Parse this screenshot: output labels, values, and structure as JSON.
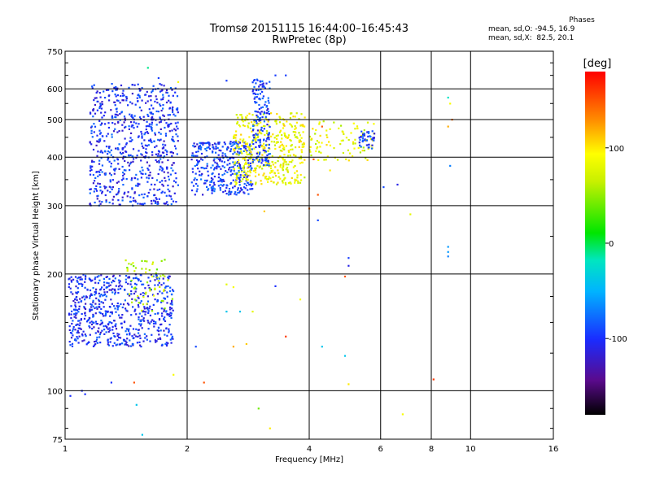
{
  "chart_data": {
    "type": "scatter",
    "title": "Tromsø 20151115 16:44:00–16:45:43",
    "subtitle": "RwPretec (8p)",
    "xlabel": "Frequency [MHz]",
    "ylabel": "Stationary phase Virtual Height [km]",
    "x_scale": "log",
    "y_scale": "log",
    "xlim": [
      1,
      16
    ],
    "ylim": [
      75,
      750
    ],
    "x_ticks": [
      1,
      2,
      4,
      6,
      8,
      10,
      16
    ],
    "x_tick_labels": [
      "1",
      "2",
      "4",
      "6",
      "8",
      "10",
      "16"
    ],
    "y_ticks": [
      75,
      100,
      200,
      300,
      400,
      500,
      600,
      750
    ],
    "y_tick_labels": [
      "75",
      "100",
      "200",
      "300",
      "400",
      "500",
      "600",
      "750"
    ],
    "grid": true,
    "colorbar": {
      "label": "[deg]",
      "range": [
        -180,
        180
      ],
      "ticks": [
        100,
        0,
        -100
      ],
      "tick_labels": [
        "100",
        "0",
        "-100"
      ]
    },
    "phase_stats": {
      "title": "Phases",
      "line_o": "mean, sd,O: -94.5, 16.9",
      "line_x": "mean, sd,X:  82.5, 20.1"
    },
    "clusters": [
      {
        "fmin": 1.15,
        "fmax": 1.9,
        "hmin": 300,
        "hmax": 620,
        "phase": -100,
        "count": 700
      },
      {
        "fmin": 2.05,
        "fmax": 2.9,
        "hmin": 320,
        "hmax": 440,
        "phase": -95,
        "count": 350
      },
      {
        "fmin": 2.6,
        "fmax": 3.9,
        "hmin": 340,
        "hmax": 520,
        "phase": 85,
        "count": 420
      },
      {
        "fmin": 2.9,
        "fmax": 3.2,
        "hmin": 380,
        "hmax": 640,
        "phase": -95,
        "count": 160
      },
      {
        "fmin": 4.0,
        "fmax": 5.8,
        "hmin": 390,
        "hmax": 500,
        "phase": 80,
        "count": 90
      },
      {
        "fmin": 5.3,
        "fmax": 5.8,
        "hmin": 420,
        "hmax": 470,
        "phase": -95,
        "count": 40
      },
      {
        "fmin": 1.02,
        "fmax": 1.85,
        "hmin": 130,
        "hmax": 200,
        "phase": -100,
        "count": 650
      },
      {
        "fmin": 1.4,
        "fmax": 1.85,
        "hmin": 160,
        "hmax": 220,
        "phase": 60,
        "count": 60
      }
    ],
    "points": [
      {
        "x": 1.6,
        "y": 680,
        "phase": -10
      },
      {
        "x": 1.7,
        "y": 640,
        "phase": -95
      },
      {
        "x": 1.9,
        "y": 625,
        "phase": 90
      },
      {
        "x": 2.5,
        "y": 630,
        "phase": -95
      },
      {
        "x": 3.3,
        "y": 650,
        "phase": -95
      },
      {
        "x": 3.5,
        "y": 650,
        "phase": -95
      },
      {
        "x": 4.3,
        "y": 480,
        "phase": 150
      },
      {
        "x": 4.1,
        "y": 395,
        "phase": 150
      },
      {
        "x": 4.5,
        "y": 370,
        "phase": 100
      },
      {
        "x": 4.2,
        "y": 320,
        "phase": 150
      },
      {
        "x": 4.0,
        "y": 295,
        "phase": 140
      },
      {
        "x": 4.2,
        "y": 275,
        "phase": -90
      },
      {
        "x": 5.0,
        "y": 220,
        "phase": -95
      },
      {
        "x": 5.0,
        "y": 210,
        "phase": -110
      },
      {
        "x": 4.9,
        "y": 197,
        "phase": 150
      },
      {
        "x": 6.1,
        "y": 335,
        "phase": -90
      },
      {
        "x": 6.6,
        "y": 340,
        "phase": -110
      },
      {
        "x": 7.1,
        "y": 285,
        "phase": 80
      },
      {
        "x": 8.8,
        "y": 570,
        "phase": -20
      },
      {
        "x": 8.9,
        "y": 550,
        "phase": 90
      },
      {
        "x": 9.0,
        "y": 500,
        "phase": 140
      },
      {
        "x": 8.8,
        "y": 480,
        "phase": 120
      },
      {
        "x": 8.9,
        "y": 380,
        "phase": -70
      },
      {
        "x": 8.8,
        "y": 235,
        "phase": -60
      },
      {
        "x": 8.8,
        "y": 228,
        "phase": -60
      },
      {
        "x": 8.8,
        "y": 222,
        "phase": -70
      },
      {
        "x": 8.1,
        "y": 107,
        "phase": 160
      },
      {
        "x": 6.8,
        "y": 87,
        "phase": 90
      },
      {
        "x": 3.3,
        "y": 186,
        "phase": -100
      },
      {
        "x": 3.5,
        "y": 138,
        "phase": 160
      },
      {
        "x": 3.8,
        "y": 172,
        "phase": 90
      },
      {
        "x": 4.3,
        "y": 130,
        "phase": -40
      },
      {
        "x": 4.9,
        "y": 123,
        "phase": -40
      },
      {
        "x": 5.0,
        "y": 104,
        "phase": 100
      },
      {
        "x": 2.5,
        "y": 188,
        "phase": 80
      },
      {
        "x": 2.6,
        "y": 185,
        "phase": 90
      },
      {
        "x": 2.5,
        "y": 160,
        "phase": -40
      },
      {
        "x": 2.7,
        "y": 160,
        "phase": -40
      },
      {
        "x": 2.9,
        "y": 160,
        "phase": 80
      },
      {
        "x": 2.6,
        "y": 130,
        "phase": 120
      },
      {
        "x": 2.8,
        "y": 132,
        "phase": 110
      },
      {
        "x": 2.1,
        "y": 130,
        "phase": -90
      },
      {
        "x": 2.2,
        "y": 105,
        "phase": 150
      },
      {
        "x": 3.0,
        "y": 90,
        "phase": 40
      },
      {
        "x": 3.2,
        "y": 80,
        "phase": 100
      },
      {
        "x": 1.85,
        "y": 110,
        "phase": 90
      },
      {
        "x": 1.5,
        "y": 92,
        "phase": -40
      },
      {
        "x": 1.48,
        "y": 105,
        "phase": 150
      },
      {
        "x": 1.55,
        "y": 77,
        "phase": -40
      },
      {
        "x": 1.03,
        "y": 97,
        "phase": -100
      },
      {
        "x": 1.1,
        "y": 100,
        "phase": -100
      },
      {
        "x": 1.12,
        "y": 98,
        "phase": -100
      },
      {
        "x": 1.3,
        "y": 105,
        "phase": -100
      },
      {
        "x": 3.1,
        "y": 290,
        "phase": 110
      }
    ]
  }
}
